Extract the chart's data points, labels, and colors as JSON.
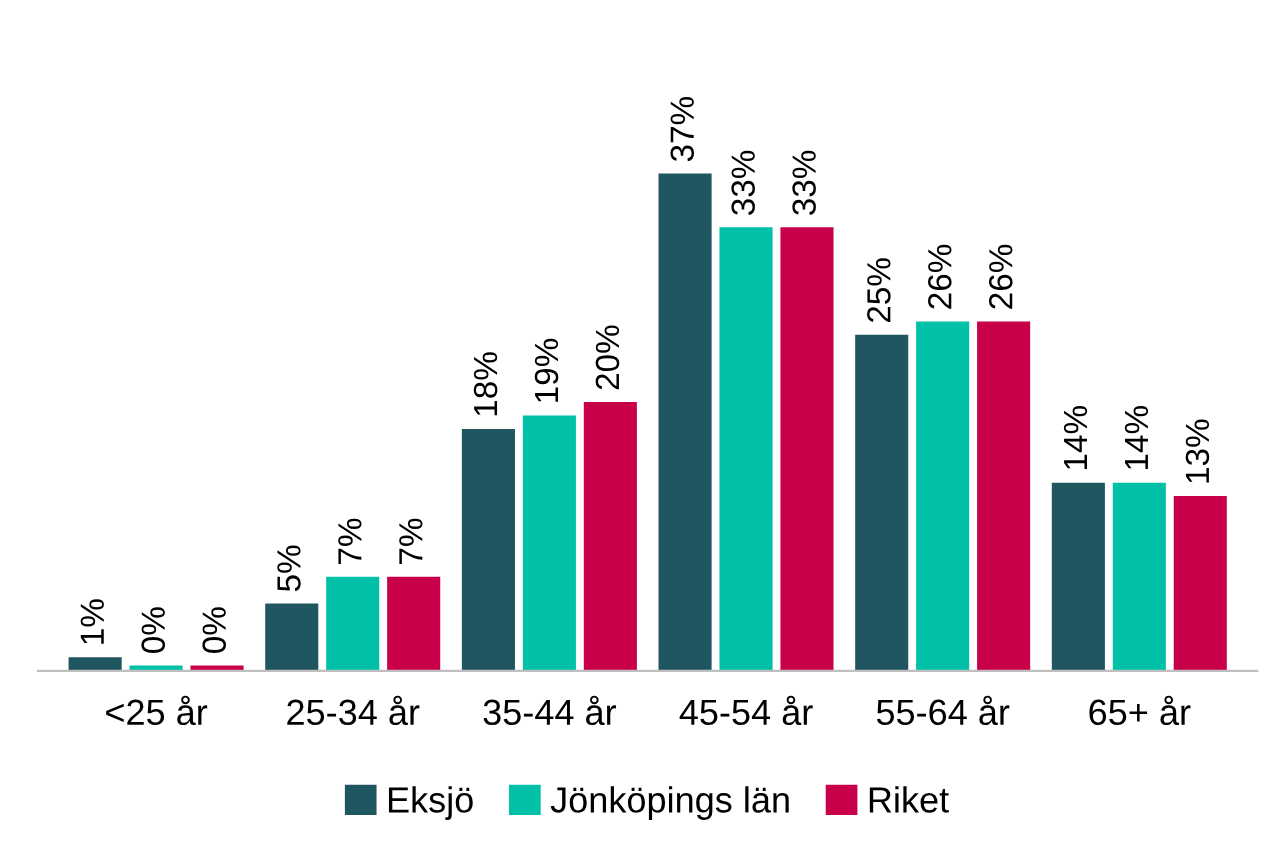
{
  "chart_data": {
    "type": "bar",
    "categories": [
      "<25 år",
      "25-34 år",
      "35-44 år",
      "45-54 år",
      "55-64 år",
      "65+ år"
    ],
    "series": [
      {
        "name": "Eksjö",
        "color": "#1f5660",
        "values": [
          1,
          5,
          18,
          37,
          25,
          14
        ],
        "value_labels": [
          "1%",
          "5%",
          "18%",
          "37%",
          "25%",
          "14%"
        ]
      },
      {
        "name": "Jönköpings län",
        "color": "#00c0a8",
        "values": [
          0.4,
          7,
          19,
          33,
          26,
          14
        ],
        "value_labels": [
          "0%",
          "7%",
          "19%",
          "33%",
          "26%",
          "14%"
        ]
      },
      {
        "name": "Riket",
        "color": "#c8004a",
        "values": [
          0.4,
          7,
          20,
          33,
          26,
          13
        ],
        "value_labels": [
          "0%",
          "7%",
          "20%",
          "33%",
          "26%",
          "13%"
        ]
      }
    ],
    "tick_labels": "x",
    "grid": false,
    "legend": "bottom"
  }
}
